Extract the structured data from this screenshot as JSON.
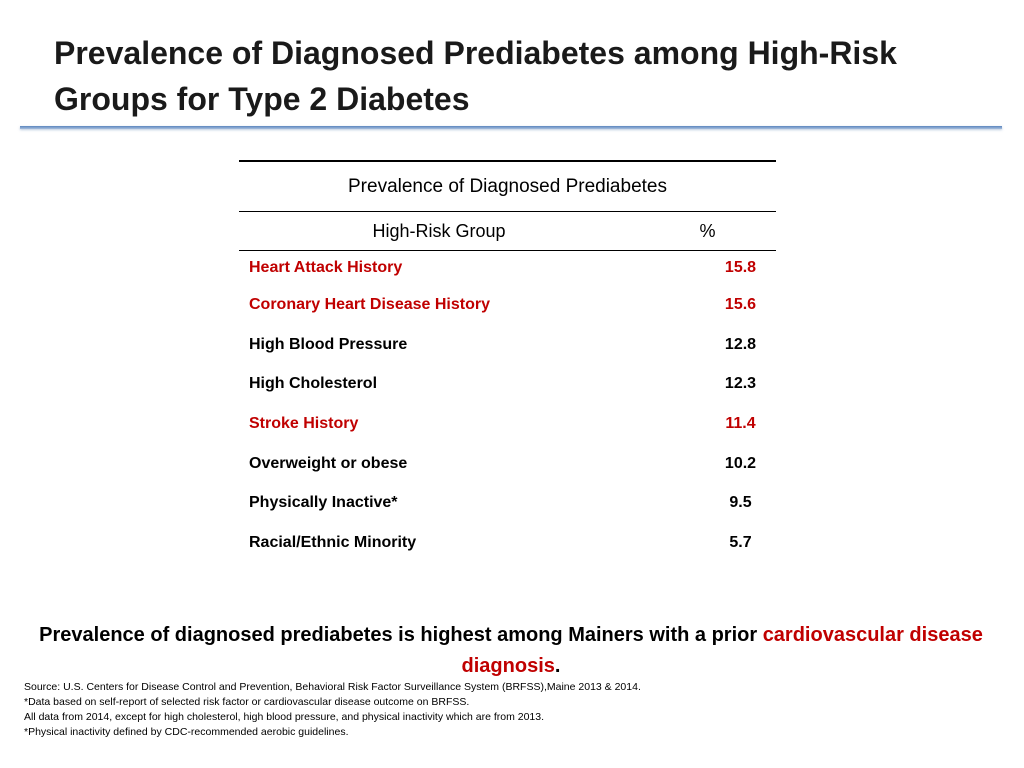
{
  "slide": {
    "title": "Prevalence of Diagnosed Prediabetes among High-Risk Groups for Type 2 Diabetes"
  },
  "table": {
    "caption": "Prevalence of Diagnosed Prediabetes",
    "headers": {
      "group": "High-Risk Group",
      "percent": "%"
    },
    "rows": [
      {
        "group": "Heart Attack History",
        "percent": "15.8",
        "highlight": true
      },
      {
        "group": "Coronary Heart Disease History",
        "percent": "15.6",
        "highlight": true
      },
      {
        "group": "High Blood Pressure",
        "percent": "12.8",
        "highlight": false
      },
      {
        "group": "High Cholesterol",
        "percent": "12.3",
        "highlight": false
      },
      {
        "group": "Stroke History",
        "percent": "11.4",
        "highlight": true
      },
      {
        "group": "Overweight or obese",
        "percent": "10.2",
        "highlight": false
      },
      {
        "group": "Physically Inactive*",
        "percent": "9.5",
        "highlight": false
      },
      {
        "group": "Racial/Ethnic Minority",
        "percent": "5.7",
        "highlight": false
      }
    ]
  },
  "conclusion": {
    "prefix": "Prevalence of diagnosed prediabetes is highest among Mainers with a prior ",
    "highlight": "cardiovascular disease diagnosis",
    "suffix": "."
  },
  "notes": [
    "Source: U.S. Centers for Disease Control and Prevention, Behavioral Risk Factor Surveillance System (BRFSS),Maine 2013 & 2014.",
    "*Data based on self-report of selected risk factor or cardiovascular disease outcome on BRFSS.",
    "All data from 2014, except for high cholesterol, high blood pressure, and physical inactivity which are from 2013.",
    "*Physical inactivity defined by CDC-recommended aerobic guidelines."
  ],
  "colors": {
    "highlight": "#c00000",
    "rule": "#5b86be",
    "text": "#000000"
  }
}
